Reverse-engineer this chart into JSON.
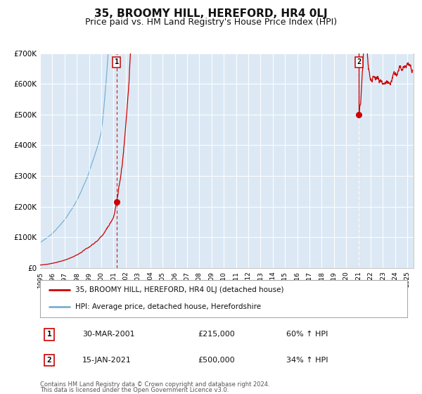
{
  "title": "35, BROOMY HILL, HEREFORD, HR4 0LJ",
  "subtitle": "Price paid vs. HM Land Registry's House Price Index (HPI)",
  "title_fontsize": 11,
  "subtitle_fontsize": 9,
  "bg_color": "#dce9f5",
  "figure_bg_color": "#ffffff",
  "red_line_color": "#cc0000",
  "blue_line_color": "#7ab0d4",
  "marker_color": "#cc0000",
  "dashed_line_color": "#cc0000",
  "ylim": [
    0,
    700000
  ],
  "yticks": [
    0,
    100000,
    200000,
    300000,
    400000,
    500000,
    600000,
    700000
  ],
  "ytick_labels": [
    "£0",
    "£100K",
    "£200K",
    "£300K",
    "£400K",
    "£500K",
    "£600K",
    "£700K"
  ],
  "xlim_start": 1995.0,
  "xlim_end": 2025.5,
  "xtick_years": [
    1995,
    1996,
    1997,
    1998,
    1999,
    2000,
    2001,
    2002,
    2003,
    2004,
    2005,
    2006,
    2007,
    2008,
    2009,
    2010,
    2011,
    2012,
    2013,
    2014,
    2015,
    2016,
    2017,
    2018,
    2019,
    2020,
    2021,
    2022,
    2023,
    2024,
    2025
  ],
  "event1_x": 2001.24,
  "event1_y": 215000,
  "event2_x": 2021.04,
  "event2_y": 500000,
  "legend_line1": "35, BROOMY HILL, HEREFORD, HR4 0LJ (detached house)",
  "legend_line2": "HPI: Average price, detached house, Herefordshire",
  "event1_date": "30-MAR-2001",
  "event1_price": "£215,000",
  "event1_hpi": "60% ↑ HPI",
  "event2_date": "15-JAN-2021",
  "event2_price": "£500,000",
  "event2_hpi": "34% ↑ HPI",
  "footer1": "Contains HM Land Registry data © Crown copyright and database right 2024.",
  "footer2": "This data is licensed under the Open Government Licence v3.0."
}
